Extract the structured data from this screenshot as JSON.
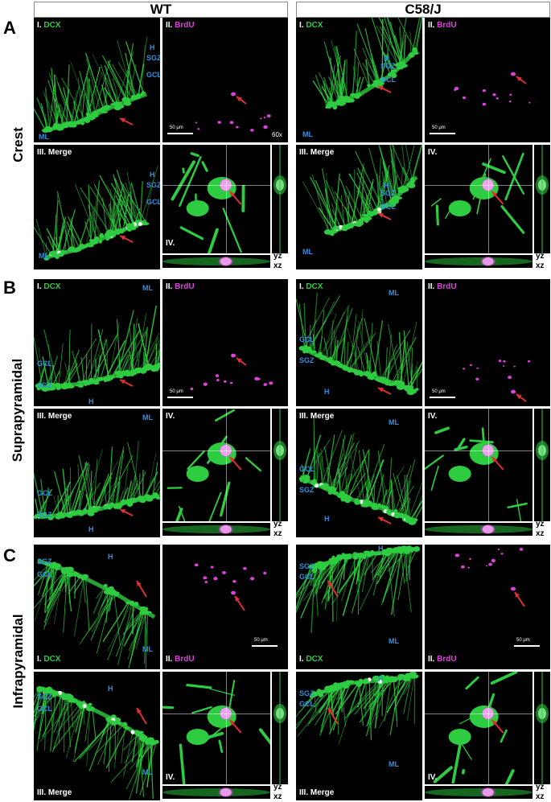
{
  "columns": [
    "WT",
    "C58/J"
  ],
  "sections": [
    "A",
    "B",
    "C"
  ],
  "rows": [
    "Crest",
    "Suprapyramidal",
    "Infrapyramidal"
  ],
  "labels": {
    "dcx_num": "I.",
    "dcx": "DCX",
    "brdu_num": "II.",
    "brdu": "BrdU",
    "merge": "III. Merge",
    "ortho": "IV."
  },
  "regions": {
    "H": "H",
    "SGZ": "SGZ",
    "GCL": "GCL",
    "ML": "ML"
  },
  "scale_bar": "50 μm",
  "magnification": "60x",
  "axes": {
    "yz": "yz",
    "xz": "xz"
  },
  "colors": {
    "dcx": "#2ecc40",
    "brdu": "#e040e0",
    "region_text": "#2f8fe0",
    "arrow": "#e03030"
  }
}
